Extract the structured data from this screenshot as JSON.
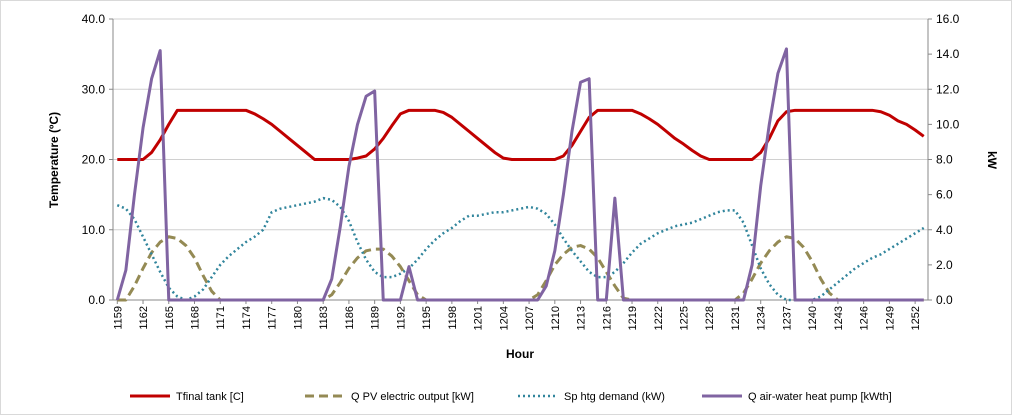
{
  "chart_data": {
    "type": "line",
    "xlabel": "Hour",
    "ylabel": "Temperature (ºC)",
    "y2label": "kW",
    "x": [
      1159,
      1160,
      1161,
      1162,
      1163,
      1164,
      1165,
      1166,
      1167,
      1168,
      1169,
      1170,
      1171,
      1172,
      1173,
      1174,
      1175,
      1176,
      1177,
      1178,
      1179,
      1180,
      1181,
      1182,
      1183,
      1184,
      1185,
      1186,
      1187,
      1188,
      1189,
      1190,
      1191,
      1192,
      1193,
      1194,
      1195,
      1196,
      1197,
      1198,
      1199,
      1200,
      1201,
      1202,
      1203,
      1204,
      1205,
      1206,
      1207,
      1208,
      1209,
      1210,
      1211,
      1212,
      1213,
      1214,
      1215,
      1216,
      1217,
      1218,
      1219,
      1220,
      1221,
      1222,
      1223,
      1224,
      1225,
      1226,
      1227,
      1228,
      1229,
      1230,
      1231,
      1232,
      1233,
      1234,
      1235,
      1236,
      1237,
      1238,
      1239,
      1240,
      1241,
      1242,
      1243,
      1244,
      1245,
      1246,
      1247,
      1248,
      1249,
      1250,
      1251,
      1252,
      1253
    ],
    "xlim": [
      1158.5,
      1253.5
    ],
    "xticks": [
      1159,
      1162,
      1165,
      1168,
      1171,
      1174,
      1177,
      1180,
      1183,
      1186,
      1189,
      1192,
      1195,
      1198,
      1201,
      1204,
      1207,
      1210,
      1213,
      1216,
      1219,
      1222,
      1225,
      1228,
      1231,
      1234,
      1237,
      1240,
      1243,
      1246,
      1249,
      1252
    ],
    "ylim": [
      0,
      40
    ],
    "yticks": [
      {
        "value": 0,
        "label": "0.0"
      },
      {
        "value": 10,
        "label": "10.0"
      },
      {
        "value": 20,
        "label": "20.0"
      },
      {
        "value": 30,
        "label": "30.0"
      },
      {
        "value": 40,
        "label": "40.0"
      }
    ],
    "y2lim": [
      0,
      16
    ],
    "y2ticks": [
      {
        "value": 0,
        "label": "0.0"
      },
      {
        "value": 2,
        "label": "2.0"
      },
      {
        "value": 4,
        "label": "4.0"
      },
      {
        "value": 6,
        "label": "6.0"
      },
      {
        "value": 8,
        "label": "8.0"
      },
      {
        "value": 10,
        "label": "10.0"
      },
      {
        "value": 12,
        "label": "12.0"
      },
      {
        "value": 14,
        "label": "14.0"
      },
      {
        "value": 16,
        "label": "16.0"
      }
    ],
    "grid": true,
    "legend": "bottom",
    "series": [
      {
        "name": "Tfinal tank [C]",
        "color": "#c00000",
        "dash": "solid",
        "axis": "y",
        "values": [
          20,
          20,
          20,
          20,
          21,
          22.8,
          25,
          27,
          27,
          27,
          27,
          27,
          27,
          27,
          27,
          27,
          26.5,
          25.8,
          25,
          24,
          23,
          22,
          21,
          20,
          20,
          20,
          20,
          20,
          20.2,
          20.5,
          21.5,
          23,
          24.8,
          26.5,
          27,
          27,
          27,
          27,
          26.7,
          26,
          25,
          24,
          23,
          22,
          21,
          20.2,
          20,
          20,
          20,
          20,
          20,
          20,
          20.5,
          22,
          24,
          26,
          27,
          27,
          27,
          27,
          27,
          26.5,
          25.8,
          25,
          24,
          23,
          22.2,
          21.3,
          20.5,
          20,
          20,
          20,
          20,
          20,
          20,
          21,
          23,
          25.5,
          26.8,
          27,
          27,
          27,
          27,
          27,
          27,
          27,
          27,
          27,
          27,
          26.8,
          26.3,
          25.5,
          25,
          24.2,
          23.3
        ]
      },
      {
        "name": "Q PV electric output [kW]",
        "color": "#948a54",
        "dash": "dash",
        "axis": "y2",
        "values": [
          0,
          0,
          0.8,
          1.8,
          2.7,
          3.3,
          3.6,
          3.5,
          3.1,
          2.4,
          1.4,
          0.5,
          0,
          0,
          0,
          0,
          0,
          0,
          0,
          0,
          0,
          0,
          0,
          0,
          0,
          0.3,
          1.0,
          1.8,
          2.4,
          2.8,
          2.9,
          2.9,
          2.5,
          1.9,
          1.1,
          0.3,
          0,
          0,
          0,
          0,
          0,
          0,
          0,
          0,
          0,
          0,
          0,
          0,
          0,
          0.3,
          1.1,
          2.0,
          2.6,
          3.0,
          3.1,
          2.9,
          2.4,
          1.6,
          0.8,
          0.1,
          0,
          0,
          0,
          0,
          0,
          0,
          0,
          0,
          0,
          0,
          0,
          0,
          0,
          0.4,
          1.2,
          2.1,
          2.8,
          3.3,
          3.6,
          3.5,
          3.0,
          2.2,
          1.2,
          0.4,
          0,
          0,
          0,
          0,
          0,
          0,
          0,
          0,
          0,
          0,
          0
        ]
      },
      {
        "name": "Sp htg demand (kW)",
        "color": "#31859c",
        "dash": "dot",
        "axis": "y2",
        "values": [
          5.4,
          5.2,
          4.6,
          3.6,
          2.6,
          1.6,
          0.7,
          0.2,
          0,
          0.2,
          0.6,
          1.3,
          2.0,
          2.5,
          2.9,
          3.3,
          3.6,
          4.0,
          5.0,
          5.2,
          5.3,
          5.4,
          5.5,
          5.6,
          5.8,
          5.7,
          5.3,
          4.5,
          3.3,
          2.3,
          1.6,
          1.3,
          1.3,
          1.5,
          1.8,
          2.3,
          2.9,
          3.4,
          3.8,
          4.1,
          4.5,
          4.8,
          4.8,
          4.9,
          5.0,
          5.0,
          5.1,
          5.2,
          5.3,
          5.2,
          4.9,
          4.3,
          3.5,
          2.8,
          2.2,
          1.6,
          1.3,
          1.3,
          1.6,
          2.1,
          2.7,
          3.2,
          3.5,
          3.8,
          4.0,
          4.2,
          4.3,
          4.4,
          4.6,
          4.8,
          5.0,
          5.1,
          5.1,
          4.4,
          3.1,
          1.8,
          0.9,
          0.3,
          0,
          0,
          0,
          0,
          0.2,
          0.6,
          1.0,
          1.4,
          1.8,
          2.1,
          2.4,
          2.6,
          2.9,
          3.2,
          3.5,
          3.8,
          4.1
        ]
      },
      {
        "name": "Q air-water heat pump [kWth]",
        "color": "#8064a2",
        "dash": "solid",
        "axis": "y2",
        "values": [
          0,
          1.7,
          6.0,
          9.8,
          12.6,
          14.2,
          0,
          0,
          0,
          0,
          0,
          0,
          0,
          0,
          0,
          0,
          0,
          0,
          0,
          0,
          0,
          0,
          0,
          0,
          0,
          1.2,
          4.2,
          7.6,
          10.0,
          11.6,
          11.9,
          0,
          0,
          0,
          1.9,
          0,
          0,
          0,
          0,
          0,
          0,
          0,
          0,
          0,
          0,
          0,
          0,
          0,
          0,
          0,
          0.8,
          2.8,
          6.0,
          9.6,
          12.4,
          12.6,
          0,
          0,
          5.8,
          0,
          0,
          0,
          0,
          0,
          0,
          0,
          0,
          0,
          0,
          0,
          0,
          0,
          0,
          0,
          2.0,
          6.5,
          10.0,
          12.9,
          14.3,
          0,
          0,
          0,
          0,
          0,
          0,
          0,
          0,
          0,
          0,
          0,
          0,
          0,
          0,
          0,
          0
        ]
      }
    ]
  }
}
